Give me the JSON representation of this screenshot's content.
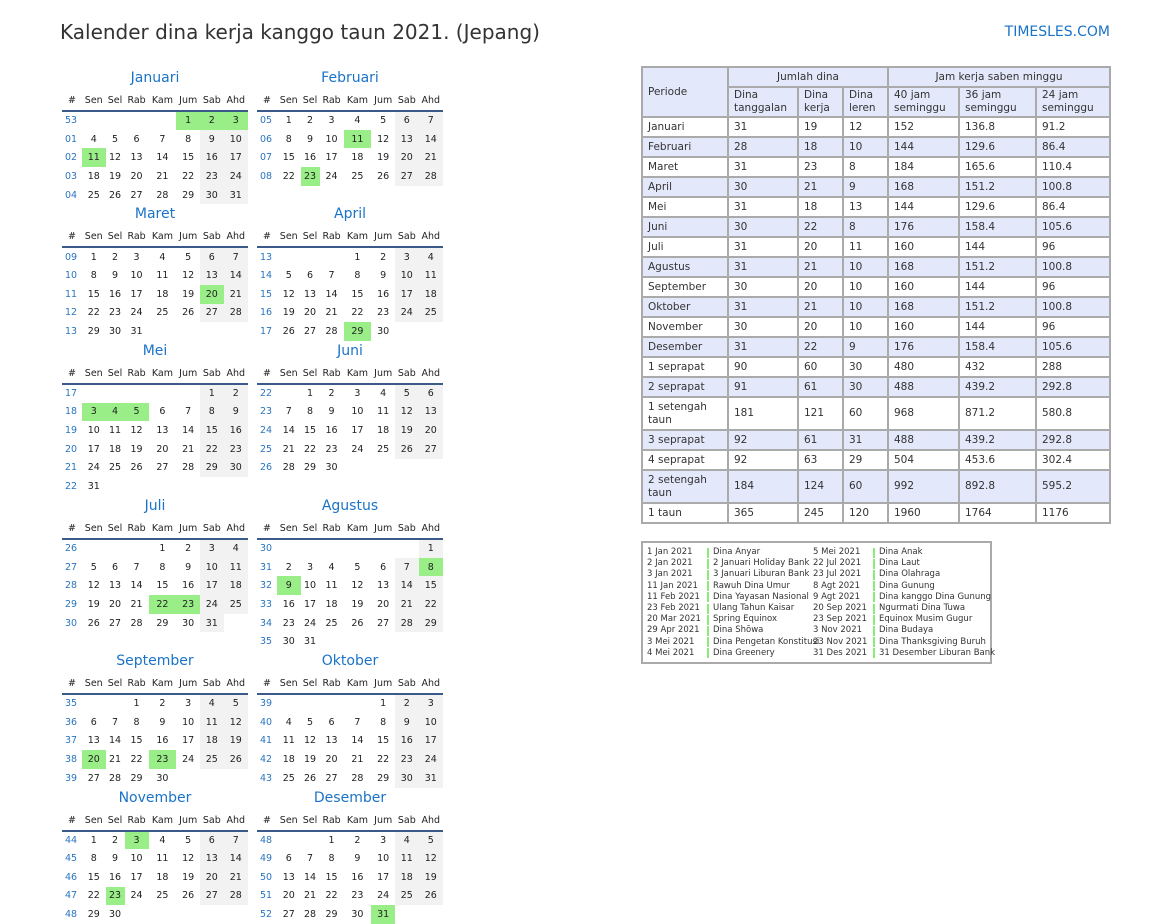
{
  "title": "Kalender dina kerja kanggo taun 2021. (Jepang)",
  "brand": "TIMESLES.COM",
  "colors": {
    "holiday": "#99ee88",
    "weekend": "#f2f2f2",
    "accent": "#1a73c8",
    "table_header": "#e3e8fb"
  },
  "weekday_header": [
    "#",
    "Sen",
    "Sel",
    "Rab",
    "Kam",
    "Jum",
    "Sab",
    "Ahd"
  ],
  "months": [
    {
      "name": "Januari",
      "holidays": [
        "1",
        "2",
        "3",
        "11"
      ],
      "weeks": [
        [
          "53",
          "",
          "",
          "",
          "",
          "1",
          "2",
          "3"
        ],
        [
          "01",
          "4",
          "5",
          "6",
          "7",
          "8",
          "9",
          "10"
        ],
        [
          "02",
          "11",
          "12",
          "13",
          "14",
          "15",
          "16",
          "17"
        ],
        [
          "03",
          "18",
          "19",
          "20",
          "21",
          "22",
          "23",
          "24"
        ],
        [
          "04",
          "25",
          "26",
          "27",
          "28",
          "29",
          "30",
          "31"
        ]
      ]
    },
    {
      "name": "Februari",
      "holidays": [
        "11",
        "23"
      ],
      "weeks": [
        [
          "05",
          "1",
          "2",
          "3",
          "4",
          "5",
          "6",
          "7"
        ],
        [
          "06",
          "8",
          "9",
          "10",
          "11",
          "12",
          "13",
          "14"
        ],
        [
          "07",
          "15",
          "16",
          "17",
          "18",
          "19",
          "20",
          "21"
        ],
        [
          "08",
          "22",
          "23",
          "24",
          "25",
          "26",
          "27",
          "28"
        ]
      ]
    },
    {
      "name": "Maret",
      "holidays": [
        "20"
      ],
      "weeks": [
        [
          "09",
          "1",
          "2",
          "3",
          "4",
          "5",
          "6",
          "7"
        ],
        [
          "10",
          "8",
          "9",
          "10",
          "11",
          "12",
          "13",
          "14"
        ],
        [
          "11",
          "15",
          "16",
          "17",
          "18",
          "19",
          "20",
          "21"
        ],
        [
          "12",
          "22",
          "23",
          "24",
          "25",
          "26",
          "27",
          "28"
        ],
        [
          "13",
          "29",
          "30",
          "31",
          "",
          "",
          "",
          ""
        ]
      ]
    },
    {
      "name": "April",
      "holidays": [
        "29"
      ],
      "weeks": [
        [
          "13",
          "",
          "",
          "",
          "1",
          "2",
          "3",
          "4"
        ],
        [
          "14",
          "5",
          "6",
          "7",
          "8",
          "9",
          "10",
          "11"
        ],
        [
          "15",
          "12",
          "13",
          "14",
          "15",
          "16",
          "17",
          "18"
        ],
        [
          "16",
          "19",
          "20",
          "21",
          "22",
          "23",
          "24",
          "25"
        ],
        [
          "17",
          "26",
          "27",
          "28",
          "29",
          "30",
          "",
          ""
        ]
      ]
    },
    {
      "name": "Mei",
      "holidays": [
        "3",
        "4",
        "5"
      ],
      "weeks": [
        [
          "17",
          "",
          "",
          "",
          "",
          "",
          "1",
          "2"
        ],
        [
          "18",
          "3",
          "4",
          "5",
          "6",
          "7",
          "8",
          "9"
        ],
        [
          "19",
          "10",
          "11",
          "12",
          "13",
          "14",
          "15",
          "16"
        ],
        [
          "20",
          "17",
          "18",
          "19",
          "20",
          "21",
          "22",
          "23"
        ],
        [
          "21",
          "24",
          "25",
          "26",
          "27",
          "28",
          "29",
          "30"
        ],
        [
          "22",
          "31",
          "",
          "",
          "",
          "",
          "",
          ""
        ]
      ]
    },
    {
      "name": "Juni",
      "holidays": [],
      "weeks": [
        [
          "22",
          "",
          "1",
          "2",
          "3",
          "4",
          "5",
          "6"
        ],
        [
          "23",
          "7",
          "8",
          "9",
          "10",
          "11",
          "12",
          "13"
        ],
        [
          "24",
          "14",
          "15",
          "16",
          "17",
          "18",
          "19",
          "20"
        ],
        [
          "25",
          "21",
          "22",
          "23",
          "24",
          "25",
          "26",
          "27"
        ],
        [
          "26",
          "28",
          "29",
          "30",
          "",
          "",
          "",
          ""
        ]
      ]
    },
    {
      "name": "Juli",
      "holidays": [
        "22",
        "23"
      ],
      "weeks": [
        [
          "26",
          "",
          "",
          "",
          "1",
          "2",
          "3",
          "4"
        ],
        [
          "27",
          "5",
          "6",
          "7",
          "8",
          "9",
          "10",
          "11"
        ],
        [
          "28",
          "12",
          "13",
          "14",
          "15",
          "16",
          "17",
          "18"
        ],
        [
          "29",
          "19",
          "20",
          "21",
          "22",
          "23",
          "24",
          "25"
        ],
        [
          "30",
          "26",
          "27",
          "28",
          "29",
          "30",
          "31",
          ""
        ]
      ]
    },
    {
      "name": "Agustus",
      "holidays": [
        "8",
        "9"
      ],
      "weeks": [
        [
          "30",
          "",
          "",
          "",
          "",
          "",
          "",
          "1"
        ],
        [
          "31",
          "2",
          "3",
          "4",
          "5",
          "6",
          "7",
          "8"
        ],
        [
          "32",
          "9",
          "10",
          "11",
          "12",
          "13",
          "14",
          "15"
        ],
        [
          "33",
          "16",
          "17",
          "18",
          "19",
          "20",
          "21",
          "22"
        ],
        [
          "34",
          "23",
          "24",
          "25",
          "26",
          "27",
          "28",
          "29"
        ],
        [
          "35",
          "30",
          "31",
          "",
          "",
          "",
          "",
          ""
        ]
      ]
    },
    {
      "name": "September",
      "holidays": [
        "20",
        "23"
      ],
      "weeks": [
        [
          "35",
          "",
          "",
          "1",
          "2",
          "3",
          "4",
          "5"
        ],
        [
          "36",
          "6",
          "7",
          "8",
          "9",
          "10",
          "11",
          "12"
        ],
        [
          "37",
          "13",
          "14",
          "15",
          "16",
          "17",
          "18",
          "19"
        ],
        [
          "38",
          "20",
          "21",
          "22",
          "23",
          "24",
          "25",
          "26"
        ],
        [
          "39",
          "27",
          "28",
          "29",
          "30",
          "",
          "",
          ""
        ]
      ]
    },
    {
      "name": "Oktober",
      "holidays": [],
      "weeks": [
        [
          "39",
          "",
          "",
          "",
          "",
          "1",
          "2",
          "3"
        ],
        [
          "40",
          "4",
          "5",
          "6",
          "7",
          "8",
          "9",
          "10"
        ],
        [
          "41",
          "11",
          "12",
          "13",
          "14",
          "15",
          "16",
          "17"
        ],
        [
          "42",
          "18",
          "19",
          "20",
          "21",
          "22",
          "23",
          "24"
        ],
        [
          "43",
          "25",
          "26",
          "27",
          "28",
          "29",
          "30",
          "31"
        ]
      ]
    },
    {
      "name": "November",
      "holidays": [
        "3",
        "23"
      ],
      "weeks": [
        [
          "44",
          "1",
          "2",
          "3",
          "4",
          "5",
          "6",
          "7"
        ],
        [
          "45",
          "8",
          "9",
          "10",
          "11",
          "12",
          "13",
          "14"
        ],
        [
          "46",
          "15",
          "16",
          "17",
          "18",
          "19",
          "20",
          "21"
        ],
        [
          "47",
          "22",
          "23",
          "24",
          "25",
          "26",
          "27",
          "28"
        ],
        [
          "48",
          "29",
          "30",
          "",
          "",
          "",
          "",
          ""
        ]
      ]
    },
    {
      "name": "Desember",
      "holidays": [
        "31"
      ],
      "weeks": [
        [
          "48",
          "",
          "",
          "1",
          "2",
          "3",
          "4",
          "5"
        ],
        [
          "49",
          "6",
          "7",
          "8",
          "9",
          "10",
          "11",
          "12"
        ],
        [
          "50",
          "13",
          "14",
          "15",
          "16",
          "17",
          "18",
          "19"
        ],
        [
          "51",
          "20",
          "21",
          "22",
          "23",
          "24",
          "25",
          "26"
        ],
        [
          "52",
          "27",
          "28",
          "29",
          "30",
          "31",
          "",
          ""
        ]
      ]
    }
  ],
  "stats": {
    "periode": "Periode",
    "group_days": "Jumlah dina",
    "group_hours": "Jam kerja saben minggu",
    "cols": [
      "Dina tanggalan",
      "Dina kerja",
      "Dina leren",
      "40 jam seminggu",
      "36 jam seminggu",
      "24 jam seminggu"
    ],
    "rows": [
      [
        "Januari",
        "31",
        "19",
        "12",
        "152",
        "136.8",
        "91.2"
      ],
      [
        "Februari",
        "28",
        "18",
        "10",
        "144",
        "129.6",
        "86.4"
      ],
      [
        "Maret",
        "31",
        "23",
        "8",
        "184",
        "165.6",
        "110.4"
      ],
      [
        "April",
        "30",
        "21",
        "9",
        "168",
        "151.2",
        "100.8"
      ],
      [
        "Mei",
        "31",
        "18",
        "13",
        "144",
        "129.6",
        "86.4"
      ],
      [
        "Juni",
        "30",
        "22",
        "8",
        "176",
        "158.4",
        "105.6"
      ],
      [
        "Juli",
        "31",
        "20",
        "11",
        "160",
        "144",
        "96"
      ],
      [
        "Agustus",
        "31",
        "21",
        "10",
        "168",
        "151.2",
        "100.8"
      ],
      [
        "September",
        "30",
        "20",
        "10",
        "160",
        "144",
        "96"
      ],
      [
        "Oktober",
        "31",
        "21",
        "10",
        "168",
        "151.2",
        "100.8"
      ],
      [
        "November",
        "30",
        "20",
        "10",
        "160",
        "144",
        "96"
      ],
      [
        "Desember",
        "31",
        "22",
        "9",
        "176",
        "158.4",
        "105.6"
      ],
      [
        "1 seprapat",
        "90",
        "60",
        "30",
        "480",
        "432",
        "288"
      ],
      [
        "2 seprapat",
        "91",
        "61",
        "30",
        "488",
        "439.2",
        "292.8"
      ],
      [
        "1 setengah taun",
        "181",
        "121",
        "60",
        "968",
        "871.2",
        "580.8"
      ],
      [
        "3 seprapat",
        "92",
        "61",
        "31",
        "488",
        "439.2",
        "292.8"
      ],
      [
        "4 seprapat",
        "92",
        "63",
        "29",
        "504",
        "453.6",
        "302.4"
      ],
      [
        "2 setengah taun",
        "184",
        "124",
        "60",
        "992",
        "892.8",
        "595.2"
      ],
      [
        "1 taun",
        "365",
        "245",
        "120",
        "1960",
        "1764",
        "1176"
      ]
    ]
  },
  "legend": [
    [
      [
        "1 Jan 2021",
        "Dina Anyar"
      ],
      [
        "2 Jan 2021",
        "2 Januari Holiday Bank"
      ],
      [
        "3 Jan 2021",
        "3 Januari Liburan Bank"
      ],
      [
        "11 Jan 2021",
        "Rawuh Dina Umur"
      ],
      [
        "11 Feb 2021",
        "Dina Yayasan Nasional"
      ],
      [
        "23 Feb 2021",
        "Ulang Tahun Kaisar"
      ],
      [
        "20 Mar 2021",
        "Spring Equinox"
      ],
      [
        "29 Apr 2021",
        "Dina Shōwa"
      ],
      [
        "3 Mei 2021",
        "Dina Pengetan Konstitusi"
      ],
      [
        "4 Mei 2021",
        "Dina Greenery"
      ]
    ],
    [
      [
        "5 Mei 2021",
        "Dina Anak"
      ],
      [
        "22 Jul 2021",
        "Dina Laut"
      ],
      [
        "23 Jul 2021",
        "Dina Olahraga"
      ],
      [
        "8 Agt 2021",
        "Dina Gunung"
      ],
      [
        "9 Agt 2021",
        "Dina kanggo Dina Gunung"
      ],
      [
        "20 Sep 2021",
        "Ngurmati Dina Tuwa"
      ],
      [
        "23 Sep 2021",
        "Equinox Musim Gugur"
      ],
      [
        "3 Nov 2021",
        "Dina Budaya"
      ],
      [
        "23 Nov 2021",
        "Dina Thanksgiving Buruh"
      ],
      [
        "31 Des 2021",
        "31 Desember Liburan Bank"
      ]
    ]
  ]
}
